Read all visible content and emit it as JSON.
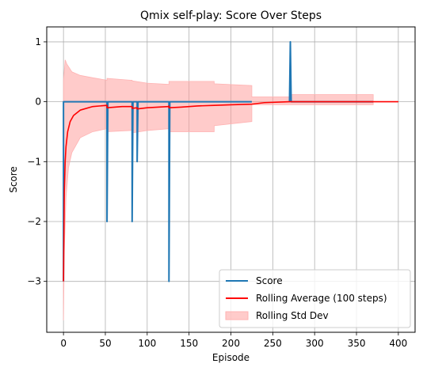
{
  "chart_data": {
    "type": "line",
    "title": "Qmix self-play: Score Over Steps",
    "xlabel": "Episode",
    "ylabel": "Score",
    "xlim": [
      -20,
      420
    ],
    "ylim": [
      -3.85,
      1.25
    ],
    "x_ticks": [
      0,
      50,
      100,
      150,
      200,
      250,
      300,
      350,
      400
    ],
    "y_ticks": [
      1,
      0,
      -1,
      -2,
      -3
    ],
    "grid": true,
    "legend_placement": "bottom-right",
    "legend": [
      "Score",
      "Rolling Average (100 steps)",
      "Rolling Std Dev"
    ],
    "colors": {
      "score": "#1f77b4",
      "rolling_average": "#ff0000",
      "rolling_std_fill": "#ff9896",
      "rolling_std_edge": "#ffb3b3",
      "grid": "#b0b0b0"
    },
    "series": [
      {
        "name": "Score",
        "style": "line",
        "segments": [
          [
            [
              0,
              -3
            ],
            [
              0,
              0
            ],
            [
              52,
              0
            ],
            [
              52,
              -2
            ],
            [
              53,
              0
            ],
            [
              82,
              0
            ],
            [
              82,
              -2
            ],
            [
              83,
              0
            ],
            [
              88,
              0
            ],
            [
              88,
              -1
            ],
            [
              89,
              0
            ],
            [
              126,
              0
            ],
            [
              126,
              -3
            ],
            [
              127,
              0
            ],
            [
              225,
              0
            ]
          ],
          [
            [
              270,
              0
            ],
            [
              271,
              1
            ],
            [
              272,
              0
            ],
            [
              370,
              0
            ]
          ]
        ]
      },
      {
        "name": "Rolling Average (100 steps)",
        "style": "line",
        "points": [
          [
            0,
            -3
          ],
          [
            1,
            -1.5
          ],
          [
            2,
            -1.0
          ],
          [
            3,
            -0.75
          ],
          [
            5,
            -0.5
          ],
          [
            8,
            -0.33
          ],
          [
            12,
            -0.23
          ],
          [
            20,
            -0.14
          ],
          [
            35,
            -0.08
          ],
          [
            52,
            -0.06
          ],
          [
            52,
            -0.1
          ],
          [
            70,
            -0.08
          ],
          [
            82,
            -0.08
          ],
          [
            82,
            -0.11
          ],
          [
            88,
            -0.1
          ],
          [
            88,
            -0.12
          ],
          [
            100,
            -0.1
          ],
          [
            125,
            -0.08
          ],
          [
            126,
            -0.07
          ],
          [
            126,
            -0.1
          ],
          [
            140,
            -0.09
          ],
          [
            160,
            -0.07
          ],
          [
            180,
            -0.06
          ],
          [
            200,
            -0.05
          ],
          [
            225,
            -0.04
          ],
          [
            240,
            -0.015
          ],
          [
            270,
            0
          ],
          [
            400,
            0
          ]
        ]
      },
      {
        "name": "Rolling Std Dev",
        "style": "band",
        "upper": [
          [
            0,
            0.35
          ],
          [
            2,
            0.7
          ],
          [
            4,
            0.63
          ],
          [
            10,
            0.5
          ],
          [
            20,
            0.44
          ],
          [
            35,
            0.4
          ],
          [
            52,
            0.36
          ],
          [
            52,
            0.39
          ],
          [
            80,
            0.36
          ],
          [
            82,
            0.36
          ],
          [
            82,
            0.35
          ],
          [
            100,
            0.31
          ],
          [
            126,
            0.29
          ],
          [
            126,
            0.34
          ],
          [
            180,
            0.34
          ],
          [
            180,
            0.3
          ],
          [
            225,
            0.27
          ],
          [
            225,
            0.08
          ],
          [
            270,
            0.08
          ],
          [
            270,
            0.12
          ],
          [
            370,
            0.12
          ],
          [
            370,
            0.0
          ]
        ],
        "lower": [
          [
            0,
            -3.65
          ],
          [
            1,
            -2.5
          ],
          [
            3,
            -1.6
          ],
          [
            6,
            -1.1
          ],
          [
            10,
            -0.85
          ],
          [
            20,
            -0.6
          ],
          [
            35,
            -0.5
          ],
          [
            52,
            -0.45
          ],
          [
            52,
            -0.5
          ],
          [
            80,
            -0.48
          ],
          [
            82,
            -0.47
          ],
          [
            82,
            -0.52
          ],
          [
            100,
            -0.48
          ],
          [
            126,
            -0.45
          ],
          [
            126,
            -0.5
          ],
          [
            180,
            -0.5
          ],
          [
            180,
            -0.4
          ],
          [
            225,
            -0.33
          ],
          [
            225,
            -0.05
          ],
          [
            270,
            -0.05
          ],
          [
            270,
            -0.05
          ],
          [
            370,
            -0.05
          ],
          [
            370,
            0.0
          ]
        ]
      }
    ]
  }
}
